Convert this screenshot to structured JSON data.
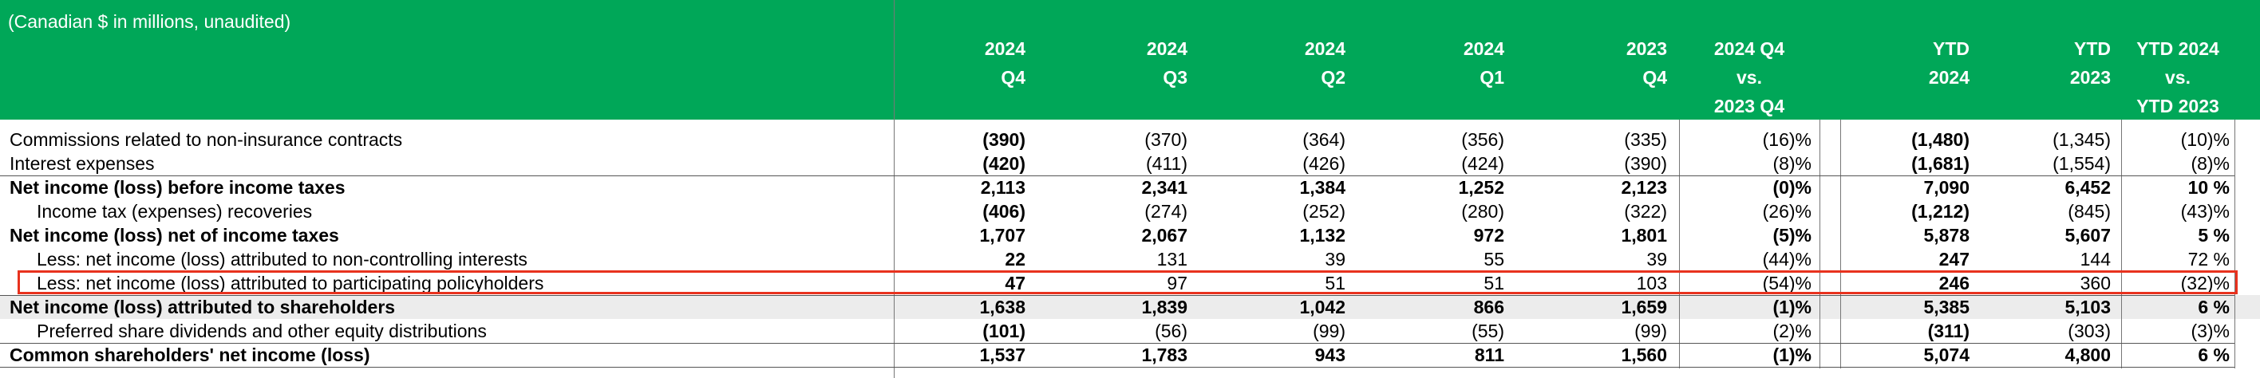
{
  "header": {
    "note": "(Canadian $ in millions, unaudited)",
    "columns": [
      [
        "2024",
        "Q4"
      ],
      [
        "2024",
        "Q3"
      ],
      [
        "2024",
        "Q2"
      ],
      [
        "2024",
        "Q1"
      ],
      [
        "2023",
        "Q4"
      ],
      [
        "2024 Q4",
        "vs.",
        "2023 Q4"
      ],
      [
        "YTD",
        "2024"
      ],
      [
        "YTD",
        "2023"
      ],
      [
        "YTD 2024",
        "vs.",
        "YTD 2023"
      ]
    ]
  },
  "table": {
    "rows": [
      {
        "label": "Commissions related to non-insurance contracts",
        "values": [
          "(390)",
          "(370)",
          "(364)",
          "(356)",
          "(335)",
          "(16)%",
          "(1,480)",
          "(1,345)",
          "(10)%"
        ]
      },
      {
        "label": "Interest expenses",
        "values": [
          "(420)",
          "(411)",
          "(426)",
          "(424)",
          "(390)",
          "(8)%",
          "(1,681)",
          "(1,554)",
          "(8)%"
        ]
      },
      {
        "label": "Net income (loss) before income taxes",
        "values": [
          "2,113",
          "2,341",
          "1,384",
          "1,252",
          "2,123",
          "(0)%",
          "7,090",
          "6,452",
          "10 %"
        ]
      },
      {
        "label": "Income tax (expenses) recoveries",
        "values": [
          "(406)",
          "(274)",
          "(252)",
          "(280)",
          "(322)",
          "(26)%",
          "(1,212)",
          "(845)",
          "(43)%"
        ]
      },
      {
        "label": "Net income (loss) net of income taxes",
        "values": [
          "1,707",
          "2,067",
          "1,132",
          "972",
          "1,801",
          "(5)%",
          "5,878",
          "5,607",
          "5 %"
        ]
      },
      {
        "label": "Less: net income (loss) attributed to non-controlling interests",
        "values": [
          "22",
          "131",
          "39",
          "55",
          "39",
          "(44)%",
          "247",
          "144",
          "72 %"
        ]
      },
      {
        "label": "Less: net income (loss) attributed to participating policyholders",
        "values": [
          "47",
          "97",
          "51",
          "51",
          "103",
          "(54)%",
          "246",
          "360",
          "(32)%"
        ]
      },
      {
        "label": "Net income (loss) attributed to shareholders",
        "values": [
          "1,638",
          "1,839",
          "1,042",
          "866",
          "1,659",
          "(1)%",
          "5,385",
          "5,103",
          "6 %"
        ]
      },
      {
        "label": "Preferred share dividends and other equity distributions",
        "values": [
          "(101)",
          "(56)",
          "(99)",
          "(55)",
          "(99)",
          "(2)%",
          "(311)",
          "(303)",
          "(3)%"
        ]
      },
      {
        "label": "Common shareholders' net income (loss)",
        "values": [
          "1,537",
          "1,783",
          "943",
          "811",
          "1,560",
          "(1)%",
          "5,074",
          "4,800",
          "6 %"
        ]
      }
    ]
  }
}
